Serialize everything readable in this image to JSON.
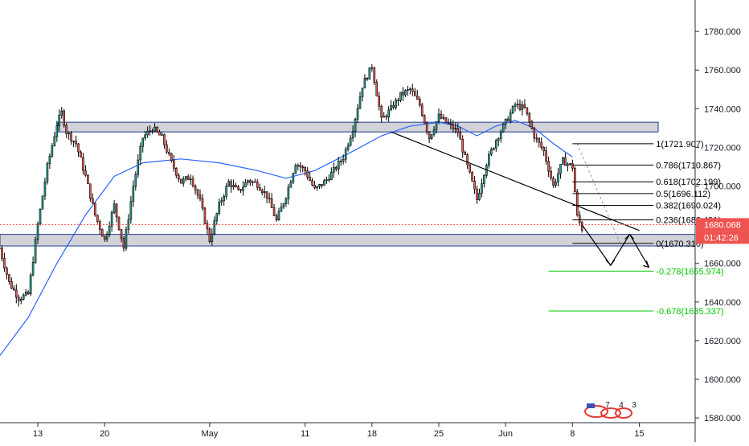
{
  "chart_data": {
    "type": "candlestick",
    "title": "",
    "y_axis": {
      "ticks": [
        1580,
        1600,
        1620,
        1640,
        1660,
        1680,
        1700,
        1720,
        1740,
        1760,
        1780
      ],
      "tick_labels": [
        "1580.000",
        "1600.000",
        "1620.000",
        "1640.000",
        "1660.000",
        "1680.000",
        "1700.000",
        "1720.000",
        "1740.000",
        "1760.000",
        "1780.000"
      ],
      "ylim": [
        1576,
        1794
      ]
    },
    "x_axis": {
      "tick_labels": [
        {
          "label": "13",
          "day": -2
        },
        {
          "label": "20",
          "day": 5
        },
        {
          "label": "May",
          "day": 16
        },
        {
          "label": "11",
          "day": 26
        },
        {
          "label": "18",
          "day": 33
        },
        {
          "label": "25",
          "day": 40
        },
        {
          "label": "Jun",
          "day": 47
        },
        {
          "label": "8",
          "day": 54
        },
        {
          "label": "15",
          "day": 61
        }
      ]
    },
    "series": [
      {
        "type": "candlestick",
        "bullish_color": "#26a69a",
        "bearish_color": "#ef5350",
        "body_fill": "#000000"
      },
      {
        "type": "moving_average",
        "color": "#2962ff"
      }
    ],
    "ma_points": [
      [
        -6,
        1612
      ],
      [
        -3,
        1632
      ],
      [
        0,
        1660
      ],
      [
        3,
        1685
      ],
      [
        6,
        1705
      ],
      [
        9,
        1712
      ],
      [
        13,
        1714
      ],
      [
        17,
        1712
      ],
      [
        21,
        1708
      ],
      [
        24,
        1704
      ],
      [
        27,
        1708
      ],
      [
        31,
        1718
      ],
      [
        34,
        1726
      ],
      [
        37,
        1731
      ],
      [
        40,
        1733
      ],
      [
        42,
        1731
      ],
      [
        44,
        1726
      ],
      [
        46,
        1731
      ],
      [
        48,
        1734
      ],
      [
        50,
        1730
      ],
      [
        52,
        1722
      ],
      [
        54,
        1715
      ]
    ],
    "price_waypoints": [
      [
        -6,
        1668
      ],
      [
        -5,
        1650
      ],
      [
        -4,
        1642
      ],
      [
        -3,
        1644
      ],
      [
        -2,
        1680
      ],
      [
        -1,
        1710
      ],
      [
        0,
        1732
      ],
      [
        0.5,
        1738
      ],
      [
        1,
        1728
      ],
      [
        2,
        1722
      ],
      [
        3,
        1705
      ],
      [
        4,
        1685
      ],
      [
        5,
        1672
      ],
      [
        6,
        1690
      ],
      [
        7,
        1668
      ],
      [
        8,
        1700
      ],
      [
        9,
        1725
      ],
      [
        10,
        1730
      ],
      [
        11,
        1725
      ],
      [
        12,
        1712
      ],
      [
        13,
        1702
      ],
      [
        14,
        1705
      ],
      [
        15,
        1692
      ],
      [
        16,
        1672
      ],
      [
        17,
        1690
      ],
      [
        18,
        1702
      ],
      [
        19,
        1697
      ],
      [
        20,
        1703
      ],
      [
        21,
        1701
      ],
      [
        22,
        1695
      ],
      [
        23,
        1682
      ],
      [
        24,
        1695
      ],
      [
        25,
        1712
      ],
      [
        26,
        1708
      ],
      [
        27,
        1698
      ],
      [
        28,
        1702
      ],
      [
        29,
        1708
      ],
      [
        30,
        1715
      ],
      [
        31,
        1730
      ],
      [
        32,
        1752
      ],
      [
        33,
        1762
      ],
      [
        34,
        1734
      ],
      [
        35,
        1740
      ],
      [
        36,
        1747
      ],
      [
        37,
        1750
      ],
      [
        38,
        1742
      ],
      [
        39,
        1725
      ],
      [
        40,
        1736
      ],
      [
        41,
        1732
      ],
      [
        42,
        1728
      ],
      [
        43,
        1710
      ],
      [
        44,
        1693
      ],
      [
        45,
        1712
      ],
      [
        46,
        1724
      ],
      [
        47,
        1733
      ],
      [
        48,
        1742
      ],
      [
        49,
        1740
      ],
      [
        50,
        1726
      ],
      [
        51,
        1718
      ],
      [
        52,
        1700
      ],
      [
        53,
        1713
      ],
      [
        54,
        1710
      ],
      [
        54.5,
        1684
      ],
      [
        55,
        1678
      ]
    ],
    "horizontal_zones": [
      {
        "low": 1728,
        "high": 1733
      },
      {
        "low": 1669,
        "high": 1675
      }
    ],
    "trendline": [
      [
        35,
        1728
      ],
      [
        61,
        1677
      ]
    ],
    "current_price": {
      "value": 1680.068,
      "label": "1680.068",
      "countdown": "01:42:26",
      "color": "#ef5350"
    },
    "fibonacci": {
      "levels": [
        {
          "label": "1(1721.907)",
          "value": 1721.907
        },
        {
          "label": "0.786(1710.867)",
          "value": 1710.867
        },
        {
          "label": "0.618(1702.199)",
          "value": 1702.199
        },
        {
          "label": "0.5(1696.112)",
          "value": 1696.112
        },
        {
          "label": "0.382(1690.024)",
          "value": 1690.024
        },
        {
          "label": "0.236(1682.491)",
          "value": 1682.491
        },
        {
          "label": "0(1670.316)",
          "value": 1670.316
        },
        {
          "label": "-0.278(1655.974)",
          "value": 1655.974,
          "color": "#00c800"
        },
        {
          "label": "-0.678(1635.337)",
          "value": 1635.337,
          "color": "#00c800"
        }
      ]
    },
    "projection_path": [
      [
        55,
        1680
      ],
      [
        58,
        1659
      ],
      [
        60,
        1675
      ],
      [
        62,
        1658
      ]
    ],
    "watermark_digits": [
      "7",
      "4",
      "3"
    ],
    "grid": false,
    "legend": "none"
  }
}
